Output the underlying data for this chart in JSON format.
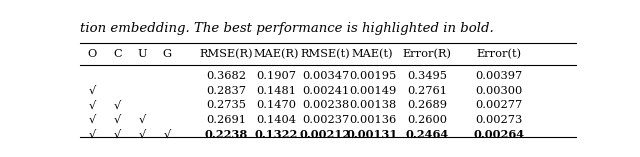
{
  "caption": "tion embedding. The best performance is highlighted in bold.",
  "col_labels": [
    "O",
    "C",
    "U",
    "G"
  ],
  "col_metrics": [
    "RMSE(R)",
    "MAE(R)",
    "RMSE(t)",
    "MAE(t)",
    "Error(R)",
    "Error(t)"
  ],
  "rows": [
    {
      "checks": [
        false,
        false,
        false,
        false
      ],
      "values": [
        "0.3682",
        "0.1907",
        "0.00347",
        "0.00195",
        "0.3495",
        "0.00397"
      ],
      "bold": [
        false,
        false,
        false,
        false,
        false,
        false
      ]
    },
    {
      "checks": [
        true,
        false,
        false,
        false
      ],
      "values": [
        "0.2837",
        "0.1481",
        "0.00241",
        "0.00149",
        "0.2761",
        "0.00300"
      ],
      "bold": [
        false,
        false,
        false,
        false,
        false,
        false
      ]
    },
    {
      "checks": [
        true,
        true,
        false,
        false
      ],
      "values": [
        "0.2735",
        "0.1470",
        "0.00238",
        "0.00138",
        "0.2689",
        "0.00277"
      ],
      "bold": [
        false,
        false,
        false,
        false,
        false,
        false
      ]
    },
    {
      "checks": [
        true,
        true,
        true,
        false
      ],
      "values": [
        "0.2691",
        "0.1404",
        "0.00237",
        "0.00136",
        "0.2600",
        "0.00273"
      ],
      "bold": [
        false,
        false,
        false,
        false,
        false,
        false
      ]
    },
    {
      "checks": [
        true,
        true,
        true,
        true
      ],
      "values": [
        "0.2238",
        "0.1322",
        "0.00212",
        "0.00131",
        "0.2464",
        "0.00264"
      ],
      "bold": [
        true,
        true,
        true,
        true,
        true,
        true
      ]
    }
  ],
  "figsize": [
    6.4,
    1.57
  ],
  "dpi": 100,
  "background_color": "#ffffff",
  "line_color": "#000000",
  "font_size": 8.2,
  "caption_font_size": 9.5
}
